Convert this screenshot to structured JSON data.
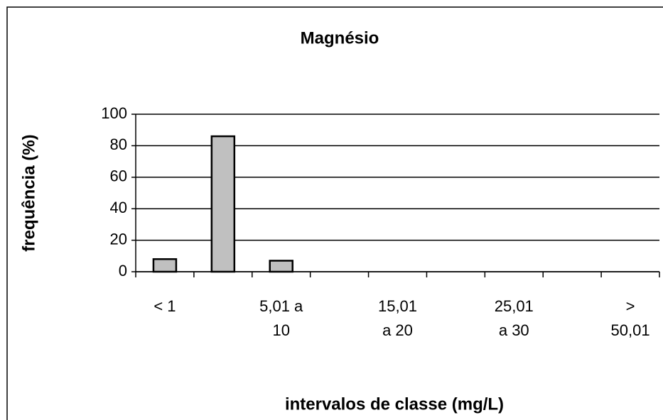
{
  "chart_data": {
    "type": "bar",
    "title": "Magnésio",
    "x_label": "intervalos de classe (mg/L)",
    "y_label": "frequência (%)",
    "categories": [
      "< 1",
      null,
      "5,01 a 10",
      null,
      "15,01 a 20",
      null,
      "25,01 a 30",
      null,
      "> 50,01"
    ],
    "values": [
      8,
      86,
      7,
      0,
      0,
      0,
      0,
      0,
      0
    ],
    "color": "#c0c0c0",
    "ylim": [
      0,
      100
    ],
    "yticks": [
      0,
      20,
      40,
      60,
      80,
      100
    ],
    "grid": true
  }
}
